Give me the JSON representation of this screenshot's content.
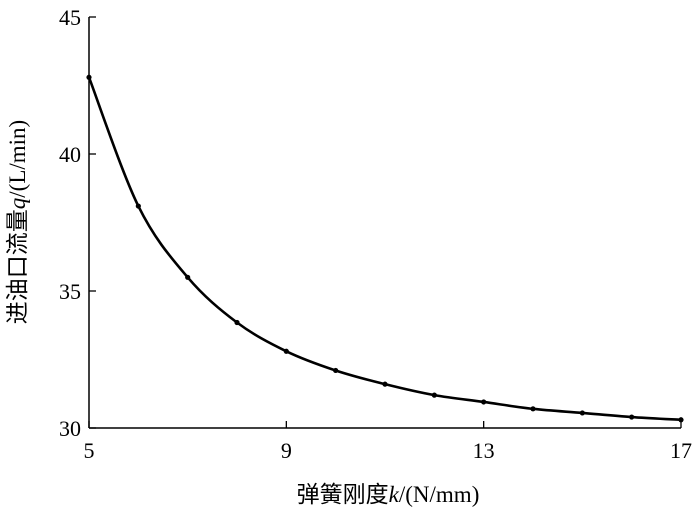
{
  "chart_data": {
    "type": "line",
    "title": "",
    "xlabel": {
      "prefix": "弹簧刚度",
      "var": "k",
      "unit": "/(N/mm)"
    },
    "ylabel": {
      "prefix": "进油口流量",
      "var": "q",
      "unit": "/(L/min)"
    },
    "xlim": [
      5,
      17
    ],
    "ylim": [
      30,
      45
    ],
    "x_ticks": [
      5,
      9,
      13,
      17
    ],
    "y_ticks": [
      30,
      35,
      40,
      45
    ],
    "grid": false,
    "legend": "none",
    "series": [
      {
        "x": [
          5,
          6,
          7,
          8,
          9,
          10,
          11,
          12,
          13,
          14,
          15,
          16,
          17
        ],
        "y": [
          42.8,
          38.1,
          35.5,
          33.85,
          32.8,
          32.1,
          31.6,
          31.2,
          30.95,
          30.7,
          30.55,
          30.4,
          30.3
        ],
        "color": "#000000",
        "marker": "dot"
      }
    ]
  }
}
